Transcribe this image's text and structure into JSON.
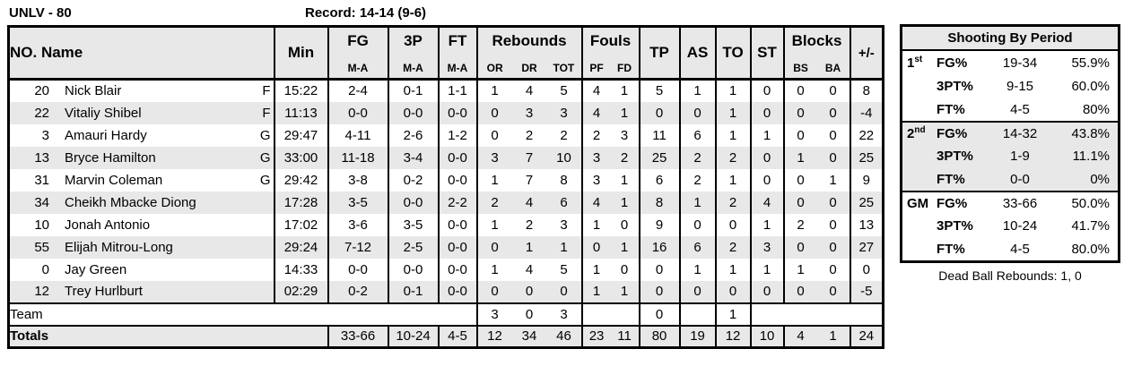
{
  "header": {
    "team_score": "UNLV - 80",
    "record": "Record: 14-14 (9-6)"
  },
  "colors": {
    "shade": "#e8e8e8",
    "border": "#000000",
    "text": "#000000",
    "background": "#ffffff"
  },
  "box_score": {
    "headers": {
      "no_name": "NO. Name",
      "min": "Min",
      "fg": "FG",
      "p3": "3P",
      "ft": "FT",
      "ma": "M-A",
      "rebounds": "Rebounds",
      "or": "OR",
      "dr": "DR",
      "tot": "TOT",
      "fouls": "Fouls",
      "pf": "PF",
      "fd": "FD",
      "tp": "TP",
      "as": "AS",
      "to": "TO",
      "st": "ST",
      "blocks": "Blocks",
      "bs": "BS",
      "ba": "BA",
      "pm": "+/-"
    },
    "players": [
      {
        "no": "20",
        "name": "Nick Blair",
        "pos": "F",
        "min": "15:22",
        "fg": "2-4",
        "p3": "0-1",
        "ft": "1-1",
        "or": "1",
        "dr": "4",
        "tot": "5",
        "pf": "4",
        "fd": "1",
        "tp": "5",
        "as": "1",
        "to": "1",
        "st": "0",
        "bs": "0",
        "ba": "0",
        "pm": "8"
      },
      {
        "no": "22",
        "name": "Vitaliy Shibel",
        "pos": "F",
        "min": "11:13",
        "fg": "0-0",
        "p3": "0-0",
        "ft": "0-0",
        "or": "0",
        "dr": "3",
        "tot": "3",
        "pf": "4",
        "fd": "1",
        "tp": "0",
        "as": "0",
        "to": "1",
        "st": "0",
        "bs": "0",
        "ba": "0",
        "pm": "-4"
      },
      {
        "no": "3",
        "name": "Amauri Hardy",
        "pos": "G",
        "min": "29:47",
        "fg": "4-11",
        "p3": "2-6",
        "ft": "1-2",
        "or": "0",
        "dr": "2",
        "tot": "2",
        "pf": "2",
        "fd": "3",
        "tp": "11",
        "as": "6",
        "to": "1",
        "st": "1",
        "bs": "0",
        "ba": "0",
        "pm": "22"
      },
      {
        "no": "13",
        "name": "Bryce Hamilton",
        "pos": "G",
        "min": "33:00",
        "fg": "11-18",
        "p3": "3-4",
        "ft": "0-0",
        "or": "3",
        "dr": "7",
        "tot": "10",
        "pf": "3",
        "fd": "2",
        "tp": "25",
        "as": "2",
        "to": "2",
        "st": "0",
        "bs": "1",
        "ba": "0",
        "pm": "25"
      },
      {
        "no": "31",
        "name": "Marvin Coleman",
        "pos": "G",
        "min": "29:42",
        "fg": "3-8",
        "p3": "0-2",
        "ft": "0-0",
        "or": "1",
        "dr": "7",
        "tot": "8",
        "pf": "3",
        "fd": "1",
        "tp": "6",
        "as": "2",
        "to": "1",
        "st": "0",
        "bs": "0",
        "ba": "1",
        "pm": "9"
      },
      {
        "no": "34",
        "name": "Cheikh Mbacke Diong",
        "pos": "",
        "min": "17:28",
        "fg": "3-5",
        "p3": "0-0",
        "ft": "2-2",
        "or": "2",
        "dr": "4",
        "tot": "6",
        "pf": "4",
        "fd": "1",
        "tp": "8",
        "as": "1",
        "to": "2",
        "st": "4",
        "bs": "0",
        "ba": "0",
        "pm": "25"
      },
      {
        "no": "10",
        "name": "Jonah Antonio",
        "pos": "",
        "min": "17:02",
        "fg": "3-6",
        "p3": "3-5",
        "ft": "0-0",
        "or": "1",
        "dr": "2",
        "tot": "3",
        "pf": "1",
        "fd": "0",
        "tp": "9",
        "as": "0",
        "to": "0",
        "st": "1",
        "bs": "2",
        "ba": "0",
        "pm": "13"
      },
      {
        "no": "55",
        "name": "Elijah Mitrou-Long",
        "pos": "",
        "min": "29:24",
        "fg": "7-12",
        "p3": "2-5",
        "ft": "0-0",
        "or": "0",
        "dr": "1",
        "tot": "1",
        "pf": "0",
        "fd": "1",
        "tp": "16",
        "as": "6",
        "to": "2",
        "st": "3",
        "bs": "0",
        "ba": "0",
        "pm": "27"
      },
      {
        "no": "0",
        "name": "Jay Green",
        "pos": "",
        "min": "14:33",
        "fg": "0-0",
        "p3": "0-0",
        "ft": "0-0",
        "or": "1",
        "dr": "4",
        "tot": "5",
        "pf": "1",
        "fd": "0",
        "tp": "0",
        "as": "1",
        "to": "1",
        "st": "1",
        "bs": "1",
        "ba": "0",
        "pm": "0"
      },
      {
        "no": "12",
        "name": "Trey Hurlburt",
        "pos": "",
        "min": "02:29",
        "fg": "0-2",
        "p3": "0-1",
        "ft": "0-0",
        "or": "0",
        "dr": "0",
        "tot": "0",
        "pf": "1",
        "fd": "1",
        "tp": "0",
        "as": "0",
        "to": "0",
        "st": "0",
        "bs": "0",
        "ba": "0",
        "pm": "-5"
      }
    ],
    "team": {
      "label": "Team",
      "or": "3",
      "dr": "0",
      "tot": "3",
      "tp": "0",
      "to": "1"
    },
    "totals": {
      "label": "Totals",
      "fg": "33-66",
      "p3": "10-24",
      "ft": "4-5",
      "or": "12",
      "dr": "34",
      "tot": "46",
      "pf": "23",
      "fd": "11",
      "tp": "80",
      "as": "19",
      "to": "12",
      "st": "10",
      "bs": "4",
      "ba": "1",
      "pm": "24"
    }
  },
  "shooting_by_period": {
    "title": "Shooting By Period",
    "rows": [
      {
        "period": "1",
        "sup": "st",
        "stat": "FG%",
        "att": "19-34",
        "pct": "55.9%",
        "section": "first"
      },
      {
        "period": "",
        "sup": "",
        "stat": "3PT%",
        "att": "9-15",
        "pct": "60.0%",
        "section": "first"
      },
      {
        "period": "",
        "sup": "",
        "stat": "FT%",
        "att": "4-5",
        "pct": "80%",
        "section": "first"
      },
      {
        "period": "2",
        "sup": "nd",
        "stat": "FG%",
        "att": "14-32",
        "pct": "43.8%",
        "section": "second"
      },
      {
        "period": "",
        "sup": "",
        "stat": "3PT%",
        "att": "1-9",
        "pct": "11.1%",
        "section": "second"
      },
      {
        "period": "",
        "sup": "",
        "stat": "FT%",
        "att": "0-0",
        "pct": "0%",
        "section": "second"
      },
      {
        "period": "GM",
        "sup": "",
        "stat": "FG%",
        "att": "33-66",
        "pct": "50.0%",
        "section": "gm"
      },
      {
        "period": "",
        "sup": "",
        "stat": "3PT%",
        "att": "10-24",
        "pct": "41.7%",
        "section": "gm"
      },
      {
        "period": "",
        "sup": "",
        "stat": "FT%",
        "att": "4-5",
        "pct": "80.0%",
        "section": "gm"
      }
    ]
  },
  "footnote": {
    "dead_ball_rebounds": "Dead Ball Rebounds: 1, 0"
  }
}
